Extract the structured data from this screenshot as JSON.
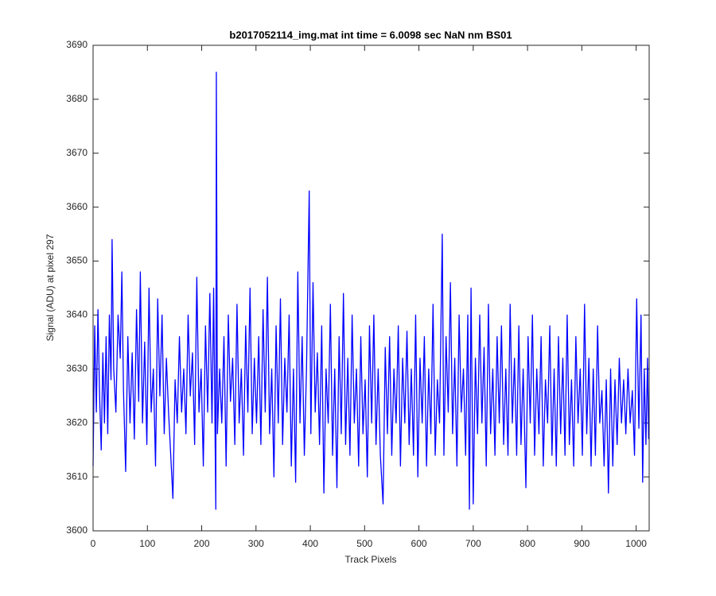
{
  "chart_data": {
    "type": "line",
    "title": "b2017052114_img.mat int time = 6.0098 sec  NaN nm BS01",
    "x_label": "Track Pixels",
    "y_label": "Signal (ADU) at pixel 297",
    "color": "#0000ff",
    "xlim": [
      0,
      1024
    ],
    "ylim": [
      3600,
      3690
    ],
    "xticks": [
      0,
      100,
      200,
      300,
      400,
      500,
      600,
      700,
      800,
      900,
      1000
    ],
    "yticks": [
      3600,
      3610,
      3620,
      3630,
      3640,
      3650,
      3660,
      3670,
      3680,
      3690
    ],
    "x": [
      0,
      3,
      6,
      9,
      12,
      15,
      18,
      21,
      24,
      27,
      30,
      33,
      35,
      38,
      42,
      46,
      50,
      53,
      56,
      60,
      64,
      68,
      72,
      76,
      80,
      84,
      87,
      91,
      95,
      99,
      103,
      107,
      111,
      115,
      119,
      123,
      127,
      131,
      135,
      139,
      143,
      147,
      151,
      155,
      159,
      163,
      167,
      171,
      175,
      179,
      183,
      187,
      191,
      195,
      199,
      203,
      207,
      211,
      215,
      219,
      222,
      226,
      227,
      229,
      233,
      237,
      241,
      245,
      249,
      253,
      257,
      261,
      265,
      269,
      273,
      277,
      281,
      285,
      289,
      293,
      297,
      301,
      305,
      309,
      313,
      317,
      321,
      325,
      329,
      333,
      337,
      341,
      345,
      349,
      353,
      357,
      361,
      365,
      369,
      373,
      377,
      381,
      385,
      389,
      393,
      398,
      401,
      405,
      409,
      413,
      417,
      421,
      425,
      429,
      433,
      437,
      441,
      445,
      449,
      453,
      457,
      461,
      465,
      469,
      473,
      477,
      481,
      485,
      489,
      493,
      497,
      501,
      505,
      509,
      513,
      517,
      521,
      525,
      529,
      534,
      538,
      542,
      546,
      550,
      554,
      558,
      562,
      566,
      570,
      574,
      578,
      582,
      586,
      590,
      594,
      598,
      602,
      606,
      610,
      614,
      618,
      622,
      626,
      630,
      634,
      638,
      643,
      646,
      650,
      654,
      658,
      662,
      666,
      670,
      674,
      678,
      682,
      686,
      690,
      693,
      696,
      700,
      704,
      708,
      712,
      716,
      720,
      724,
      728,
      732,
      736,
      740,
      744,
      748,
      752,
      756,
      760,
      764,
      768,
      772,
      776,
      780,
      784,
      788,
      792,
      797,
      801,
      805,
      809,
      813,
      817,
      821,
      825,
      829,
      833,
      837,
      841,
      845,
      849,
      853,
      857,
      861,
      865,
      869,
      873,
      877,
      881,
      885,
      889,
      893,
      897,
      901,
      905,
      909,
      913,
      917,
      921,
      925,
      929,
      933,
      937,
      941,
      945,
      949,
      953,
      957,
      961,
      965,
      969,
      973,
      977,
      981,
      985,
      989,
      993,
      997,
      1001,
      1005,
      1009,
      1012,
      1015,
      1018,
      1021,
      1023
    ],
    "values": [
      3612,
      3638,
      3622,
      3641,
      3625,
      3615,
      3633,
      3620,
      3636,
      3618,
      3640,
      3628,
      3654,
      3630,
      3622,
      3640,
      3632,
      3648,
      3626,
      3611,
      3636,
      3620,
      3633,
      3617,
      3641,
      3624,
      3648,
      3620,
      3635,
      3616,
      3645,
      3622,
      3630,
      3612,
      3643,
      3625,
      3640,
      3618,
      3632,
      3622,
      3614,
      3606,
      3628,
      3620,
      3636,
      3622,
      3630,
      3618,
      3640,
      3625,
      3633,
      3616,
      3647,
      3622,
      3630,
      3612,
      3638,
      3622,
      3644,
      3620,
      3645,
      3604,
      3685,
      3618,
      3630,
      3620,
      3636,
      3612,
      3640,
      3624,
      3632,
      3616,
      3642,
      3620,
      3630,
      3614,
      3638,
      3622,
      3645,
      3618,
      3632,
      3620,
      3636,
      3616,
      3641,
      3622,
      3647,
      3618,
      3630,
      3610,
      3638,
      3620,
      3643,
      3616,
      3632,
      3622,
      3640,
      3612,
      3630,
      3609,
      3648,
      3620,
      3636,
      3614,
      3630,
      3663,
      3618,
      3646,
      3622,
      3633,
      3616,
      3638,
      3607,
      3630,
      3620,
      3642,
      3614,
      3630,
      3608,
      3636,
      3618,
      3644,
      3616,
      3632,
      3614,
      3640,
      3620,
      3630,
      3612,
      3636,
      3618,
      3628,
      3610,
      3638,
      3620,
      3640,
      3616,
      3630,
      3614,
      3605,
      3634,
      3618,
      3636,
      3614,
      3630,
      3620,
      3638,
      3612,
      3632,
      3620,
      3637,
      3616,
      3630,
      3614,
      3640,
      3610,
      3632,
      3620,
      3636,
      3612,
      3630,
      3618,
      3642,
      3614,
      3628,
      3620,
      3655,
      3614,
      3636,
      3622,
      3646,
      3618,
      3632,
      3612,
      3640,
      3622,
      3630,
      3614,
      3640,
      3604,
      3645,
      3605,
      3632,
      3618,
      3640,
      3620,
      3634,
      3612,
      3642,
      3618,
      3630,
      3614,
      3636,
      3620,
      3638,
      3616,
      3630,
      3614,
      3642,
      3620,
      3632,
      3614,
      3638,
      3616,
      3630,
      3608,
      3636,
      3620,
      3640,
      3614,
      3630,
      3618,
      3636,
      3612,
      3628,
      3620,
      3638,
      3614,
      3630,
      3612,
      3636,
      3618,
      3632,
      3614,
      3640,
      3616,
      3628,
      3612,
      3636,
      3620,
      3630,
      3614,
      3642,
      3618,
      3632,
      3612,
      3630,
      3614,
      3638,
      3620,
      3626,
      3612,
      3628,
      3607,
      3630,
      3612,
      3628,
      3616,
      3632,
      3620,
      3628,
      3618,
      3630,
      3620,
      3626,
      3614,
      3643,
      3619,
      3640,
      3609,
      3630,
      3616,
      3632,
      3617
    ]
  }
}
